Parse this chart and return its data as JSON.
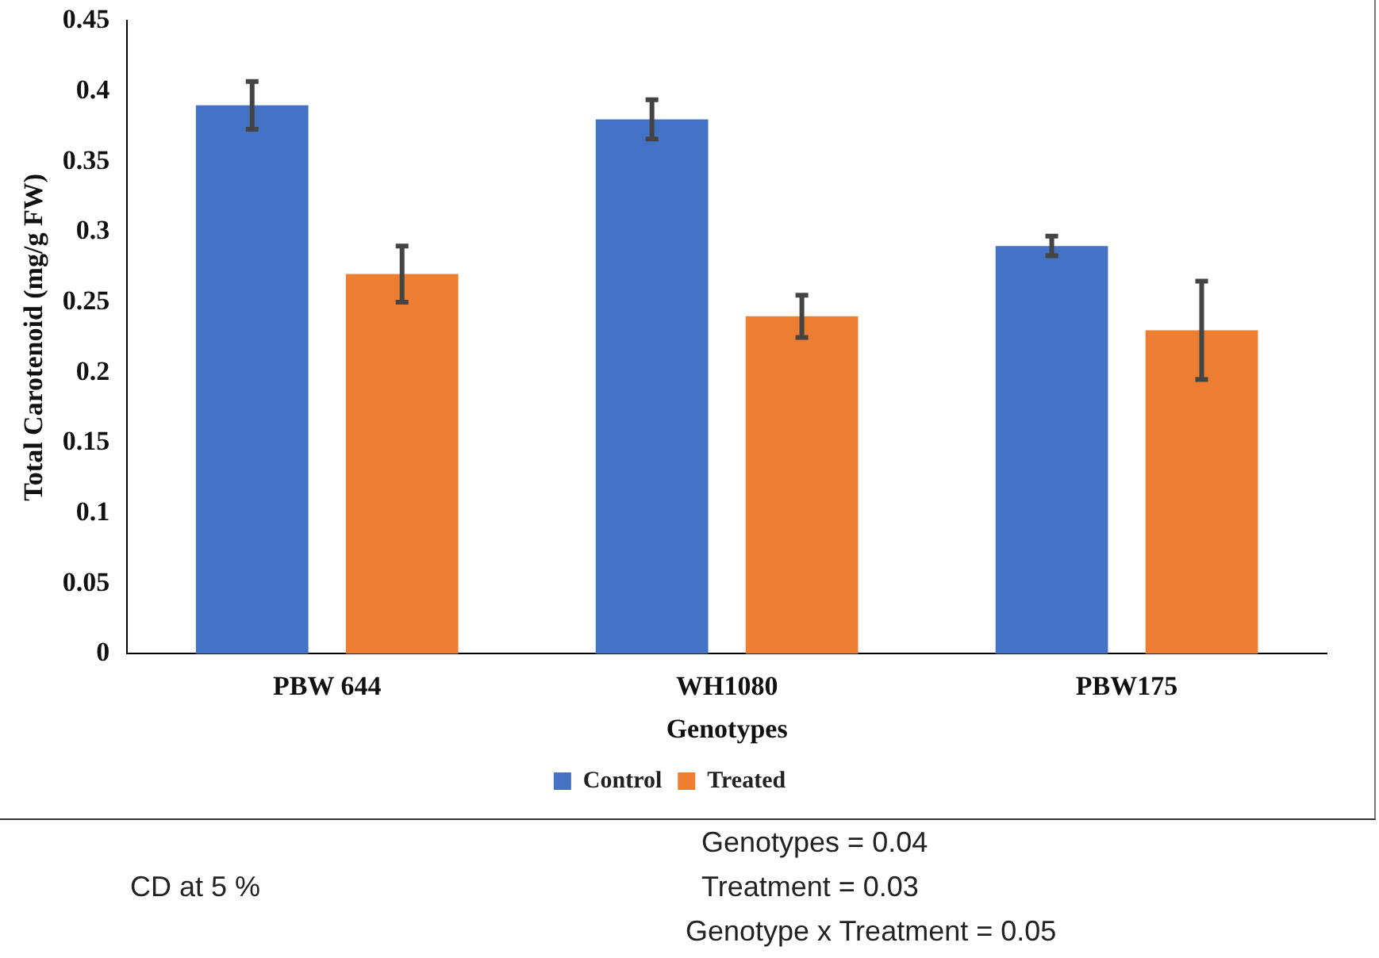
{
  "chart_data": {
    "type": "bar",
    "xlabel": "Genotypes",
    "ylabel": "Total Carotenoid (mg/g FW)",
    "categories": [
      "PBW 644",
      "WH1080",
      "PBW175"
    ],
    "series": [
      {
        "name": "Control",
        "color": "#4472c4",
        "values": [
          0.39,
          0.38,
          0.29
        ],
        "errors": [
          0.017,
          0.014,
          0.007
        ]
      },
      {
        "name": "Treated",
        "color": "#ed7d31",
        "values": [
          0.27,
          0.24,
          0.23
        ],
        "errors": [
          0.02,
          0.015,
          0.035
        ]
      }
    ],
    "ylim": [
      0,
      0.45
    ],
    "yticks": [
      0,
      0.05,
      0.1,
      0.15,
      0.2,
      0.25,
      0.3,
      0.35,
      0.4,
      0.45
    ],
    "grid": false,
    "legend": "bottom",
    "annotations": [
      "CD at 5 %",
      "Genotypes = 0.04",
      "Treatment = 0.03",
      "Genotype x Treatment = 0.05"
    ]
  }
}
